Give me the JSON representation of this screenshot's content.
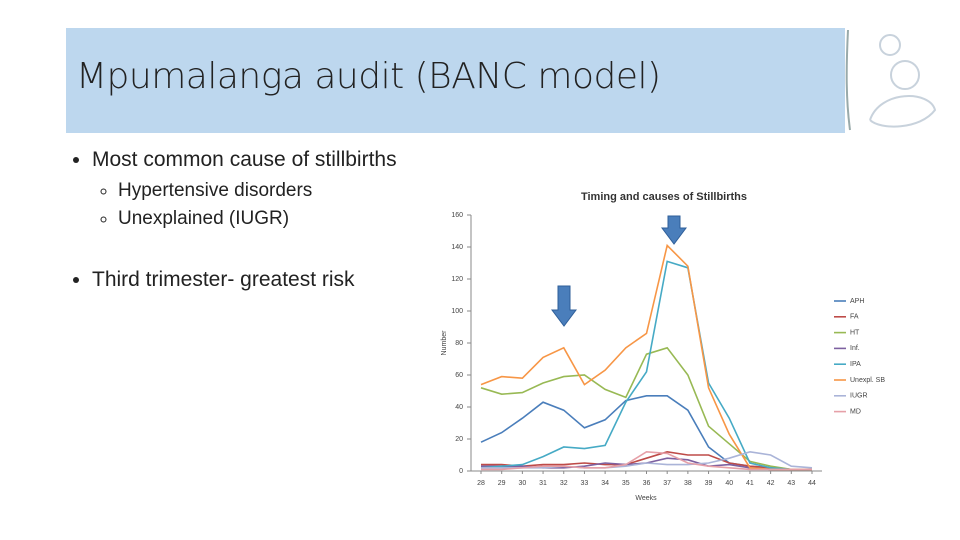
{
  "header": {
    "title": "Mpumalanga audit (BANC model)"
  },
  "bullets": [
    {
      "text": "Most common cause of stillbirths",
      "sub": [
        "Hypertensive disorders",
        "Unexplained (IUGR)"
      ]
    },
    {
      "text": "Third trimester- greatest risk",
      "sub": []
    }
  ],
  "chart_data": {
    "type": "line",
    "title": "Timing and causes of Stillbirths",
    "x_label": "Weeks",
    "y_label": "Number",
    "x": [
      28,
      29,
      30,
      31,
      32,
      33,
      34,
      35,
      36,
      37,
      38,
      39,
      40,
      41,
      42,
      43,
      44
    ],
    "xlim": [
      28,
      44
    ],
    "ylim": [
      0,
      160
    ],
    "yticks": [
      0,
      20,
      40,
      60,
      80,
      100,
      120,
      140,
      160
    ],
    "grid": false,
    "legend": "right",
    "series": [
      {
        "name": "APH",
        "color": "#4a7ebb",
        "values": [
          18,
          24,
          33,
          43,
          38,
          27,
          32,
          44,
          47,
          47,
          38,
          15,
          5,
          3,
          2,
          1,
          1
        ]
      },
      {
        "name": "FA",
        "color": "#be4b48",
        "values": [
          4,
          4,
          3,
          4,
          4,
          5,
          4,
          4,
          8,
          12,
          10,
          10,
          5,
          3,
          2,
          1,
          1
        ]
      },
      {
        "name": "HT",
        "color": "#98b954",
        "values": [
          52,
          48,
          49,
          55,
          59,
          60,
          51,
          46,
          73,
          77,
          60,
          28,
          17,
          6,
          3,
          1,
          1
        ]
      },
      {
        "name": "Inf.",
        "color": "#7d60a0",
        "values": [
          3,
          3,
          3,
          2,
          2,
          3,
          5,
          4,
          5,
          8,
          7,
          3,
          4,
          2,
          1,
          1,
          1
        ]
      },
      {
        "name": "IPA",
        "color": "#46aac5",
        "values": [
          2,
          3,
          4,
          9,
          15,
          14,
          16,
          43,
          62,
          131,
          127,
          55,
          33,
          5,
          2,
          1,
          1
        ]
      },
      {
        "name": "Unexpl. SB",
        "color": "#f79646",
        "values": [
          54,
          59,
          58,
          71,
          77,
          54,
          63,
          77,
          86,
          141,
          128,
          52,
          23,
          2,
          1,
          1,
          1
        ]
      },
      {
        "name": "IUGR",
        "color": "#aab4d8",
        "values": [
          2,
          2,
          2,
          2,
          3,
          2,
          2,
          3,
          5,
          4,
          4,
          5,
          8,
          12,
          10,
          3,
          2
        ]
      },
      {
        "name": "MD",
        "color": "#e6a0a8",
        "values": [
          1,
          1,
          2,
          3,
          3,
          2,
          2,
          4,
          12,
          11,
          5,
          3,
          2,
          1,
          1,
          1,
          1
        ]
      }
    ]
  }
}
